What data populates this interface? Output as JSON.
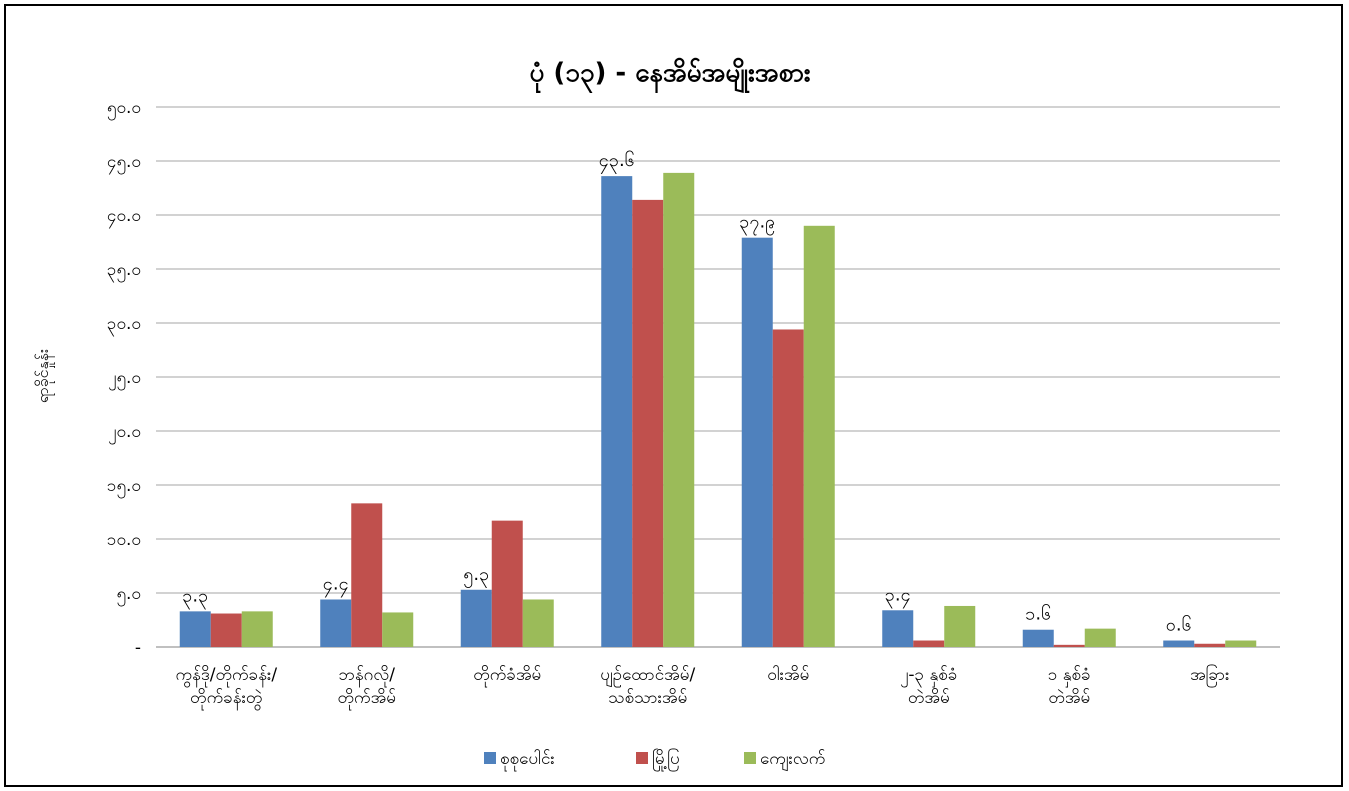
{
  "chart_data": {
    "type": "bar",
    "title": "ပုံ (၁၃) - နေအိမ်အမျိုးအစား",
    "ylabel": "ရာခိုင်နှုန်း",
    "xlabel": "",
    "ylim": [
      0,
      50
    ],
    "y_ticks": [
      {
        "value": 0,
        "label": "-"
      },
      {
        "value": 5,
        "label": "၅.၀"
      },
      {
        "value": 10,
        "label": "၁၀.၀"
      },
      {
        "value": 15,
        "label": "၁၅.၀"
      },
      {
        "value": 20,
        "label": "၂၀.၀"
      },
      {
        "value": 25,
        "label": "၂၅.၀"
      },
      {
        "value": 30,
        "label": "၃၀.၀"
      },
      {
        "value": 35,
        "label": "၃၅.၀"
      },
      {
        "value": 40,
        "label": "၄၀.၀"
      },
      {
        "value": 45,
        "label": "၄၅.၀"
      },
      {
        "value": 50,
        "label": "၅၀.၀"
      }
    ],
    "categories": [
      [
        "ကွန်ဒို/တိုက်ခန်း/",
        "တိုက်ခန်းတွဲ"
      ],
      [
        "ဘန်ဂလို/",
        "တိုက်အိမ်"
      ],
      [
        "တိုက်ခံအိမ်"
      ],
      [
        "ပျဉ်ထောင်အိမ်/",
        "သစ်သားအိမ်"
      ],
      [
        "ဝါးအိမ်"
      ],
      [
        "၂-၃ နှစ်ခံ",
        "တဲအိမ်"
      ],
      [
        "၁ နှစ်ခံ",
        "တဲအိမ်"
      ],
      [
        "အခြား"
      ]
    ],
    "series": [
      {
        "name": "စုစုပေါင်း",
        "color": "#4f81bd",
        "values": [
          3.3,
          4.4,
          5.3,
          43.6,
          37.9,
          3.4,
          1.6,
          0.6
        ]
      },
      {
        "name": "မြို့ပြ",
        "color": "#c0504d",
        "values": [
          3.1,
          13.3,
          11.7,
          41.4,
          29.4,
          0.6,
          0.2,
          0.3
        ]
      },
      {
        "name": "ကျေးလက်",
        "color": "#9bbb59",
        "values": [
          3.3,
          3.2,
          4.4,
          43.9,
          39.0,
          3.8,
          1.7,
          0.6
        ]
      }
    ],
    "data_labels": [
      "၃.၃",
      "၄.၄",
      "၅.၃",
      "၄၃.၆",
      "၃၇.၉",
      "၃.၄",
      "၁.၆",
      "၀.၆"
    ],
    "grid": true,
    "legend_position": "bottom"
  }
}
